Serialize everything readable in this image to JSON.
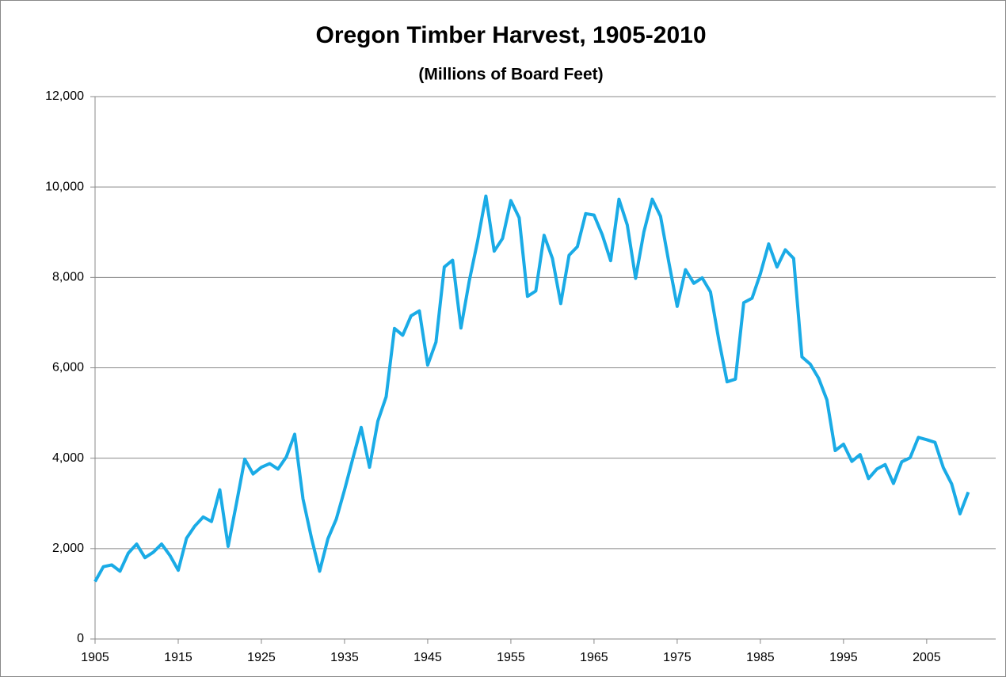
{
  "chart_data": {
    "type": "line",
    "title": "Oregon Timber Harvest, 1905-2010",
    "subtitle": "(Millions of Board Feet)",
    "x": [
      1905,
      1906,
      1907,
      1908,
      1909,
      1910,
      1911,
      1912,
      1913,
      1914,
      1915,
      1916,
      1917,
      1918,
      1919,
      1920,
      1921,
      1922,
      1923,
      1924,
      1925,
      1926,
      1927,
      1928,
      1929,
      1930,
      1931,
      1932,
      1933,
      1934,
      1935,
      1936,
      1937,
      1938,
      1939,
      1940,
      1941,
      1942,
      1943,
      1944,
      1945,
      1946,
      1947,
      1948,
      1949,
      1950,
      1951,
      1952,
      1953,
      1954,
      1955,
      1956,
      1957,
      1958,
      1959,
      1960,
      1961,
      1962,
      1963,
      1964,
      1965,
      1966,
      1967,
      1968,
      1969,
      1970,
      1971,
      1972,
      1973,
      1974,
      1975,
      1976,
      1977,
      1978,
      1979,
      1980,
      1981,
      1982,
      1983,
      1984,
      1985,
      1986,
      1987,
      1988,
      1989,
      1990,
      1991,
      1992,
      1993,
      1994,
      1995,
      1996,
      1997,
      1998,
      1999,
      2000,
      2001,
      2002,
      2003,
      2004,
      2005,
      2006,
      2007,
      2008,
      2009,
      2010
    ],
    "series": [
      {
        "name": "Oregon Timber Harvest",
        "color": "#1aabe6",
        "values": [
          1270,
          1600,
          1640,
          1500,
          1900,
          2100,
          1800,
          1920,
          2100,
          1850,
          1520,
          2230,
          2500,
          2700,
          2600,
          3300,
          2050,
          3000,
          3980,
          3650,
          3800,
          3880,
          3760,
          4030,
          4530,
          3100,
          2250,
          1500,
          2220,
          2650,
          3300,
          4000,
          4680,
          3800,
          4820,
          5360,
          6870,
          6720,
          7150,
          7260,
          6060,
          6570,
          8230,
          8380,
          6880,
          7920,
          8800,
          9800,
          8580,
          8860,
          9700,
          9320,
          7580,
          7700,
          8930,
          8420,
          7420,
          8490,
          8680,
          9410,
          9380,
          8940,
          8370,
          9730,
          9160,
          7980,
          9010,
          9730,
          9350,
          8330,
          7360,
          8170,
          7870,
          7990,
          7680,
          6620,
          5690,
          5750,
          7440,
          7540,
          8080,
          8740,
          8230,
          8610,
          8420,
          6240,
          6080,
          5770,
          5290,
          4170,
          4310,
          3930,
          4080,
          3550,
          3760,
          3860,
          3440,
          3920,
          4010,
          4460,
          4410,
          4350,
          3790,
          3430,
          2770,
          3250
        ]
      }
    ],
    "xlim": [
      1905,
      2013.3
    ],
    "xticks": [
      1905,
      1915,
      1925,
      1935,
      1945,
      1955,
      1965,
      1975,
      1985,
      1995,
      2005
    ],
    "ylim": [
      0,
      12000
    ],
    "yticks": [
      0,
      {
        "value": 2000,
        "label": "2,000"
      },
      {
        "value": 4000,
        "label": "4,000"
      },
      {
        "value": 6000,
        "label": "6,000"
      },
      {
        "value": 8000,
        "label": "8,000"
      },
      {
        "value": 10000,
        "label": "10,000"
      },
      {
        "value": 12000,
        "label": "12,000"
      }
    ],
    "grid": true
  }
}
